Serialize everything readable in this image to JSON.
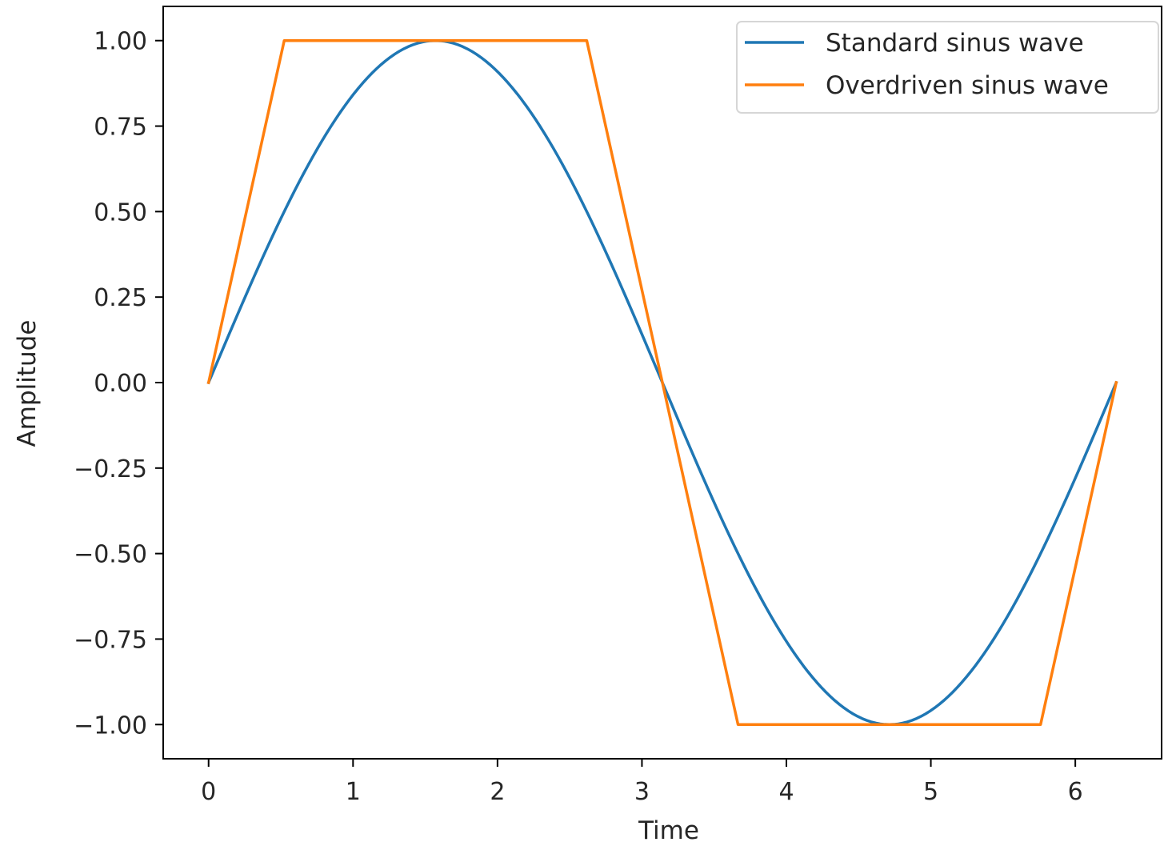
{
  "chart_data": {
    "type": "line",
    "title": "",
    "xlabel": "Time",
    "ylabel": "Amplitude",
    "xlim": [
      -0.3142,
      6.5974
    ],
    "ylim": [
      -1.1,
      1.1
    ],
    "grid": false,
    "legend_position": "top-right",
    "xticks": [
      0,
      1,
      2,
      3,
      4,
      5,
      6
    ],
    "xtick_labels": [
      "0",
      "1",
      "2",
      "3",
      "4",
      "5",
      "6"
    ],
    "yticks": [
      1.0,
      0.75,
      0.5,
      0.25,
      0.0,
      -0.25,
      -0.5,
      -0.75,
      -1.0
    ],
    "ytick_labels": [
      "1.00",
      "0.75",
      "0.50",
      "0.25",
      "0.00",
      "−0.25",
      "−0.50",
      "−0.75",
      "−1.00"
    ],
    "series": [
      {
        "name": "Standard sinus wave",
        "color": "#1f77b4",
        "function": "sin",
        "x_range": [
          0,
          6.2832
        ],
        "samples": 200
      },
      {
        "name": "Overdriven sinus wave",
        "color": "#ff7f0e",
        "x": [
          0,
          0.5236,
          2.618,
          3.1416,
          3.6652,
          5.7596,
          6.2832
        ],
        "y": [
          0,
          1,
          1,
          0,
          -1,
          -1,
          0
        ]
      }
    ]
  }
}
